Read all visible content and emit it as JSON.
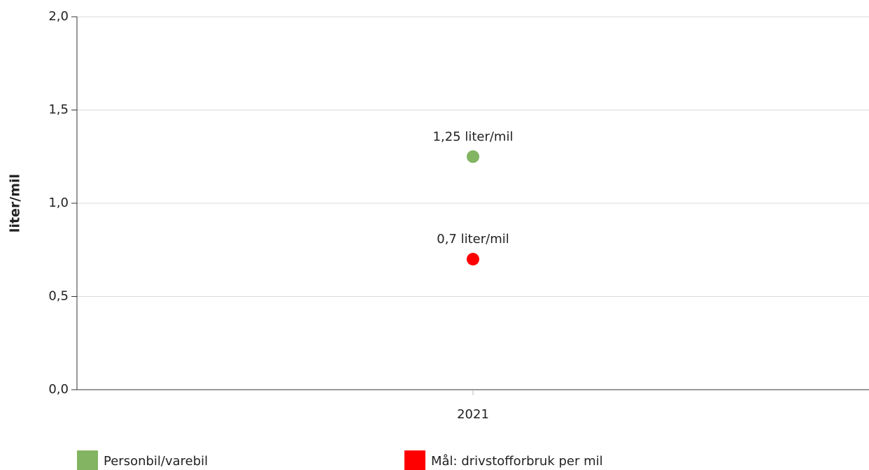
{
  "chart_data": {
    "type": "line",
    "y_label": "liter/mil",
    "categories": [
      "2021"
    ],
    "series": [
      {
        "name": "Personbil/varebil",
        "color": "#82b461",
        "values": [
          1.25
        ],
        "value_labels": [
          "1,25 liter/mil"
        ]
      },
      {
        "name": "Mål: drivstofforbruk per mil",
        "color": "#ff0000",
        "values": [
          0.7
        ],
        "value_labels": [
          "0,7 liter/mil"
        ]
      }
    ],
    "ylim": [
      0,
      2
    ],
    "yticks": [
      {
        "value": 0,
        "label": "0,0"
      },
      {
        "value": 0.5,
        "label": "0,5"
      },
      {
        "value": 1,
        "label": "1,0"
      },
      {
        "value": 1.5,
        "label": "1,5"
      },
      {
        "value": 2,
        "label": "2,0"
      }
    ],
    "grid": true
  }
}
